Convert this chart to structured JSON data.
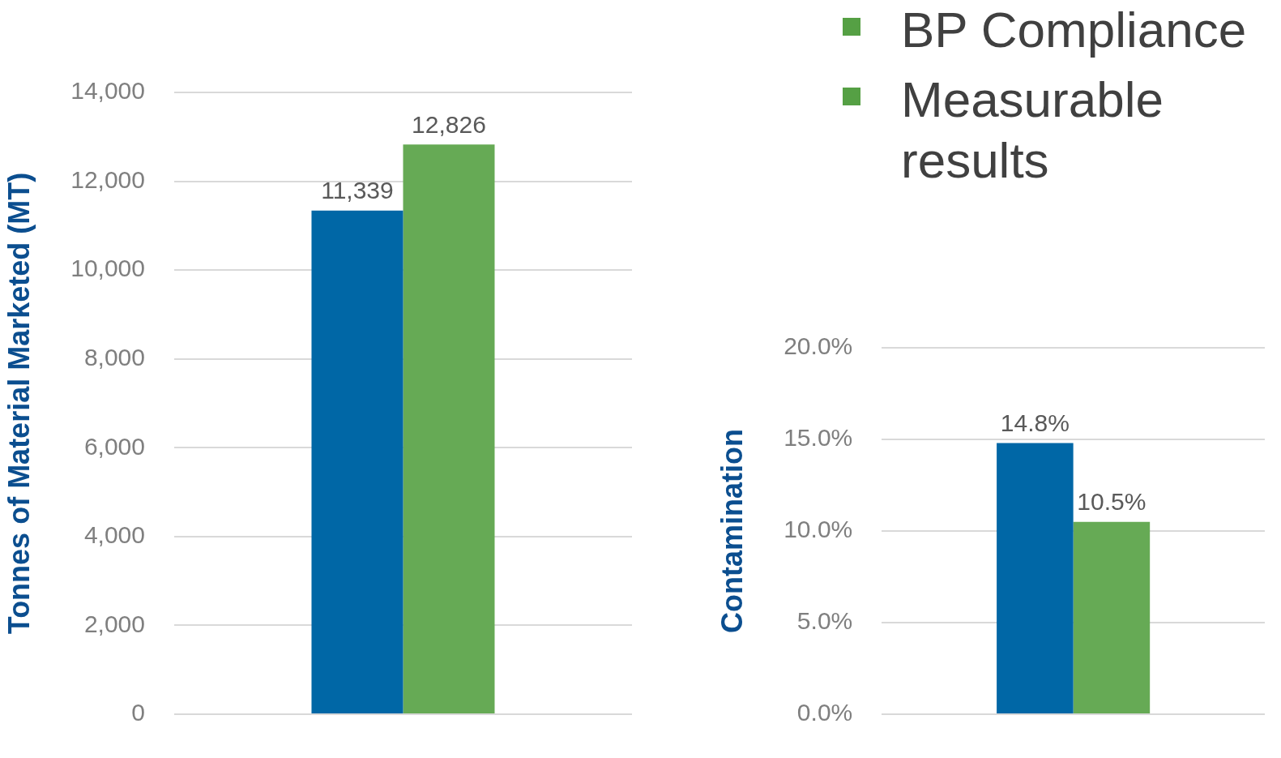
{
  "chart_data": [
    {
      "type": "bar",
      "ylabel": "Tonnes of Material Marketed (MT)",
      "categories": [
        null
      ],
      "series": [
        {
          "color": "#0067a6",
          "values": [
            11339
          ],
          "value_labels": [
            "11,339"
          ]
        },
        {
          "color": "#66aa55",
          "values": [
            12826
          ],
          "value_labels": [
            "12,826"
          ]
        }
      ],
      "ylim": [
        0,
        14000
      ],
      "yticks": [
        {
          "value": 0,
          "label": "0"
        },
        {
          "value": 2000,
          "label": "2,000"
        },
        {
          "value": 4000,
          "label": "4,000"
        },
        {
          "value": 6000,
          "label": "6,000"
        },
        {
          "value": 8000,
          "label": "8,000"
        },
        {
          "value": 10000,
          "label": "10,000"
        },
        {
          "value": 12000,
          "label": "12,000"
        },
        {
          "value": 14000,
          "label": "14,000"
        }
      ],
      "grid": "y",
      "tick_labels": "y",
      "legend": false
    },
    {
      "type": "other",
      "annotations": [
        "BP Compliance",
        "Measurable results"
      ]
    },
    {
      "type": "bar",
      "ylabel": "Contamination",
      "categories": [
        null
      ],
      "series": [
        {
          "color": "#0067a6",
          "values": [
            14.8
          ],
          "value_labels": [
            "14.8%"
          ]
        },
        {
          "color": "#66aa55",
          "values": [
            10.5
          ],
          "value_labels": [
            "10.5%"
          ]
        }
      ],
      "ylim": [
        0,
        20
      ],
      "yticks": [
        {
          "value": 0,
          "label": "0.0%"
        },
        {
          "value": 5,
          "label": "5.0%"
        },
        {
          "value": 10,
          "label": "10.0%"
        },
        {
          "value": 15,
          "label": "15.0%"
        },
        {
          "value": 20,
          "label": "20.0%"
        }
      ],
      "grid": "y",
      "tick_labels": "y",
      "legend": false
    }
  ]
}
